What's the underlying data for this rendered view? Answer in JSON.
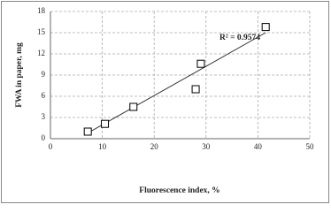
{
  "chart_data": {
    "type": "scatter",
    "x_label": "Fluorescence index, %",
    "y_label": "FWA in paper, mg",
    "annotation": "R² = 0.9574",
    "series": [
      {
        "x": [
          7.2,
          10.5,
          16.0,
          28.0,
          29.0,
          41.5
        ],
        "values": [
          1.0,
          2.1,
          4.5,
          7.0,
          10.6,
          15.8
        ],
        "color": "#000000"
      }
    ],
    "trendline": {
      "x": [
        7.2,
        41.5
      ],
      "values": [
        0.8,
        15.0
      ],
      "color": "#333333"
    },
    "xlim": [
      0,
      50
    ],
    "xticks": [
      0,
      10,
      20,
      30,
      40,
      50
    ],
    "ylim": [
      0,
      18
    ],
    "yticks": [
      0,
      3,
      6,
      9,
      12,
      15,
      18
    ],
    "grid": true
  }
}
